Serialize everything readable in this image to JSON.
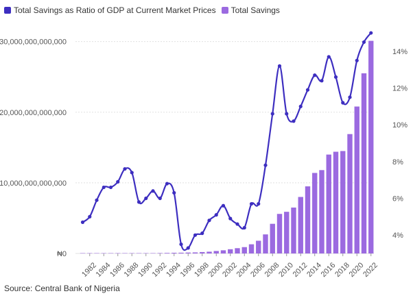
{
  "chart_data": {
    "type": "bar+line",
    "source": "Source: Central Bank of Nigeria",
    "x": [
      1981,
      1982,
      1983,
      1984,
      1985,
      1986,
      1987,
      1988,
      1989,
      1990,
      1991,
      1992,
      1993,
      1994,
      1995,
      1996,
      1997,
      1998,
      1999,
      2000,
      2001,
      2002,
      2003,
      2004,
      2005,
      2006,
      2007,
      2008,
      2009,
      2010,
      2011,
      2012,
      2013,
      2014,
      2015,
      2016,
      2017,
      2018,
      2019,
      2020,
      2021,
      2022
    ],
    "x_tick_labels": [
      "1982",
      "1984",
      "1986",
      "1988",
      "1990",
      "1992",
      "1994",
      "1996",
      "1998",
      "2000",
      "2002",
      "2004",
      "2006",
      "2008",
      "2010",
      "2012",
      "2014",
      "2016",
      "2018",
      "2020",
      "2022"
    ],
    "series": [
      {
        "name": "Total Savings as Ratio of GDP at Current Market Prices",
        "kind": "line",
        "axis": "right",
        "color": "#3d2ec0",
        "values": [
          4.7,
          5.0,
          5.9,
          6.6,
          6.6,
          6.9,
          7.6,
          7.4,
          5.8,
          6.0,
          6.4,
          6.0,
          6.8,
          6.3,
          3.5,
          3.3,
          4.0,
          4.1,
          4.8,
          5.1,
          5.6,
          4.9,
          4.6,
          4.4,
          5.7,
          5.7,
          7.8,
          10.6,
          13.2,
          10.6,
          10.2,
          11.0,
          11.9,
          12.7,
          12.4,
          13.7,
          12.6,
          11.2,
          11.5,
          13.5,
          14.5,
          15.0
        ]
      },
      {
        "name": "Total Savings",
        "kind": "bar",
        "axis": "left",
        "color": "#9b6ae0",
        "values": [
          0.005,
          0.006,
          0.007,
          0.008,
          0.009,
          0.01,
          0.013,
          0.016,
          0.02,
          0.03,
          0.04,
          0.06,
          0.08,
          0.1,
          0.11,
          0.13,
          0.15,
          0.2,
          0.25,
          0.35,
          0.45,
          0.6,
          0.75,
          0.9,
          1.3,
          1.8,
          2.7,
          4.2,
          5.6,
          5.9,
          6.5,
          8.0,
          9.5,
          11.4,
          11.8,
          14.0,
          14.4,
          14.5,
          16.9,
          20.8,
          25.5,
          30.1
        ]
      }
    ],
    "y_left": {
      "label": "",
      "unit": "trillion NGN",
      "range": [
        0,
        32
      ],
      "tick_values": [
        0,
        10,
        20,
        30
      ],
      "tick_labels": [
        "₦0",
        "₦10,000,000,000,000",
        "₦20,000,000,000,000",
        "₦30,000,000,000,000"
      ]
    },
    "y_right": {
      "label": "",
      "range": [
        3,
        15.3
      ],
      "tick_values": [
        4,
        6,
        8,
        10,
        12,
        14
      ],
      "tick_labels": [
        "4%",
        "6%",
        "8%",
        "10%",
        "12%",
        "14%"
      ]
    },
    "grid": true,
    "legend_position": "top-left"
  }
}
